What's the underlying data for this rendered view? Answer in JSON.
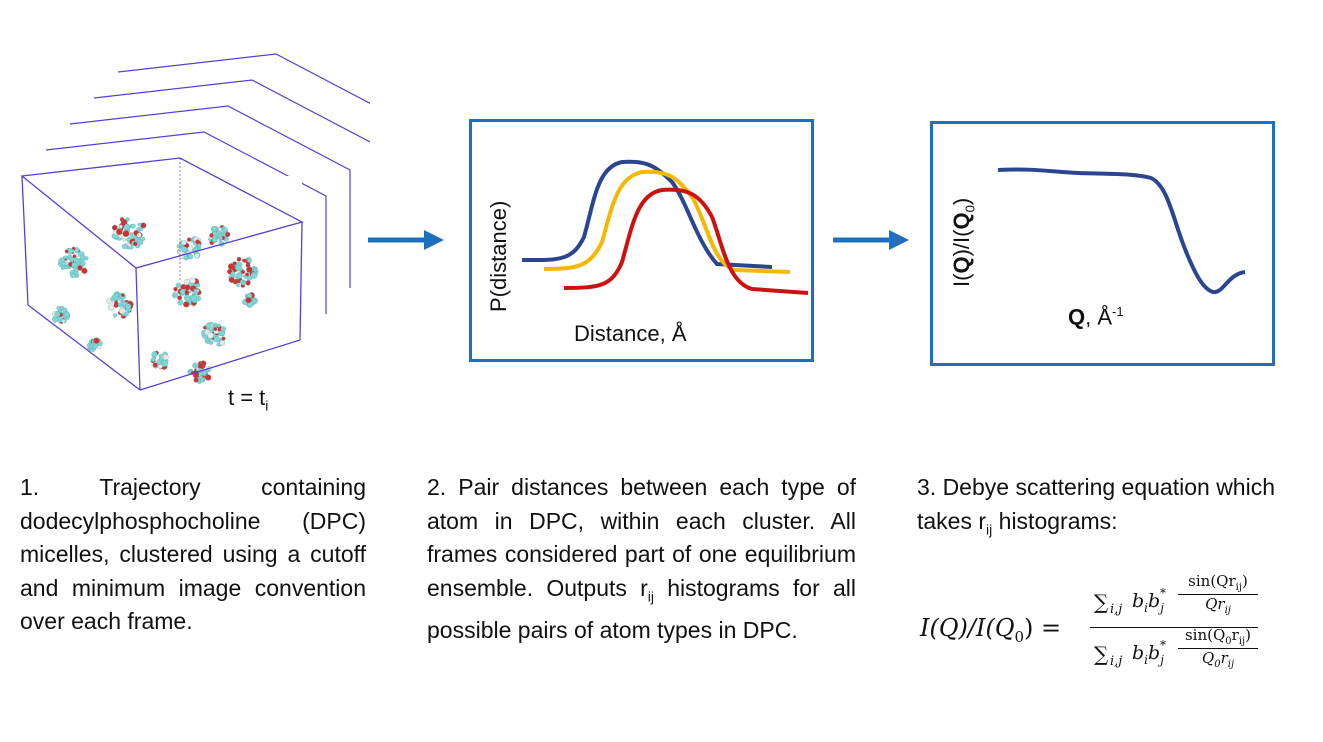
{
  "step1": {
    "time_label": "t = t",
    "time_sub": "i",
    "caption": "1. Trajectory containing dodecylphosphocholine (DPC) micelles, clustered using a cutoff and minimum image convention over each frame."
  },
  "step2": {
    "xlabel": "Distance, Å",
    "ylabel": "P(distance)",
    "caption_a": "2. Pair distances between each type of atom in DPC, within each cluster. All frames considered part of one equilibrium ensemble. Outputs r",
    "caption_sub": "ij",
    "caption_b": " histograms for all possible pairs of atom types in DPC.",
    "curve_colors": [
      "#2b4590",
      "#f5b800",
      "#cc1111"
    ]
  },
  "step3": {
    "xlabel_bold": "Q",
    "xlabel_rest": ", Å",
    "xlabel_sup": "-1",
    "ylabel_a": "I(",
    "ylabel_b": "Q",
    "ylabel_c": ")/I(",
    "ylabel_d": "Q",
    "ylabel_sub": "0",
    "ylabel_e": ")",
    "caption_a": "3. Debye scattering equation which takes r",
    "caption_sub": "ij",
    "caption_b": " histograms:",
    "curve_color": "#2b4590"
  },
  "equation": {
    "lhs": "I(Q)/I(Q",
    "lhs_sub": "0",
    "lhs_end": ") =",
    "num_sum": "∑",
    "num_idx": "i,j",
    "num_term": "b",
    "num_term_sub": "i",
    "num_term2": "b",
    "num_term2_sup": "*",
    "num_term2_sub": "j",
    "num_frac_top": "sin(Qr",
    "num_frac_top_sub": "ij",
    "num_frac_top_end": ")",
    "num_frac_bot": "Qr",
    "num_frac_bot_sub": "ij",
    "den_frac_top": "sin(Q",
    "den_frac_top_sub0": "0",
    "den_frac_top_r": "r",
    "den_frac_top_sub": "ij",
    "den_frac_top_end": ")",
    "den_frac_bot": "Q",
    "den_frac_bot_sub0": "0",
    "den_frac_bot_r": "r",
    "den_frac_bot_sub": "ij"
  },
  "colors": {
    "panel_border": "#1f6fbf",
    "arrow": "#1f6fbf",
    "box_lines": "#5a3ed6"
  }
}
